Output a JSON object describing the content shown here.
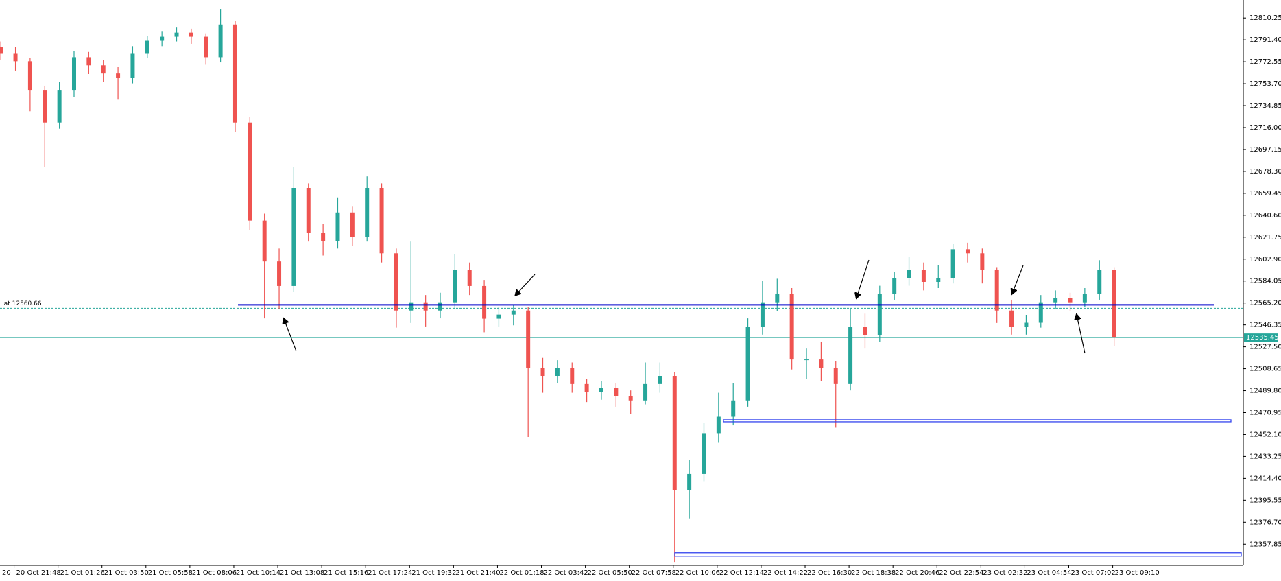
{
  "chart_data": {
    "type": "candlestick",
    "x_labels": [
      "20",
      "20 Oct 21:48",
      "21 Oct 01:26",
      "21 Oct 03:50",
      "21 Oct 05:58",
      "21 Oct 08:06",
      "21 Oct 10:14",
      "21 Oct 13:08",
      "21 Oct 15:16",
      "21 Oct 17:24",
      "21 Oct 19:32",
      "21 Oct 21:40",
      "22 Oct 01:18",
      "22 Oct 03:42",
      "22 Oct 05:50",
      "22 Oct 07:58",
      "22 Oct 10:06",
      "22 Oct 12:14",
      "22 Oct 14:22",
      "22 Oct 16:30",
      "22 Oct 18:38",
      "22 Oct 20:46",
      "22 Oct 22:54",
      "23 Oct 02:32",
      "23 Oct 04:54",
      "23 Oct 07:02",
      "23 Oct 09:10"
    ],
    "open": [
      12785,
      12780,
      12773,
      12748.4,
      12720.3,
      12748.4,
      12776.5,
      12769.5,
      12762.5,
      12759,
      12780,
      12790.6,
      12794.1,
      12797.6,
      12794.1,
      12776.5,
      12804.6,
      12720.3,
      12636,
      12600.9,
      12579.8,
      12664.1,
      12625.5,
      12618.4,
      12643,
      12622,
      12664.1,
      12607.9,
      12558.7,
      12565.8,
      12558.7,
      12565.8,
      12593.9,
      12579.8,
      12551.7,
      12555.2,
      12558.7,
      12509.5,
      12502.5,
      12509.5,
      12495.5,
      12488.5,
      12492,
      12484.9,
      12481.4,
      12495.5,
      12502.5,
      12404.2,
      12418.2,
      12453.3,
      12467.4,
      12481.4,
      12544.6,
      12565.8,
      12572.8,
      12516.6,
      12516.6,
      12509.5,
      12495.5,
      12544.6,
      12537.6,
      12572.8,
      12586.8,
      12593.9,
      12583.3,
      12586.8,
      12611.4,
      12607.9,
      12593.9,
      12558.7,
      12544.6,
      12548.2,
      12565.8,
      12569.3,
      12565.8,
      12572.8,
      12593.9
    ],
    "high": [
      12790,
      12785,
      12776,
      12752,
      12755,
      12782,
      12781,
      12774,
      12768,
      12786,
      12795,
      12799,
      12802,
      12801,
      12797,
      12818,
      12808,
      12725,
      12642,
      12612,
      12682,
      12668,
      12633,
      12656,
      12648,
      12674,
      12668,
      12612,
      12618,
      12572,
      12574,
      12607,
      12600,
      12585,
      12562,
      12564,
      12562,
      12518,
      12516,
      12514,
      12500,
      12498,
      12496,
      12490,
      12514,
      12514,
      12506,
      12430,
      12462,
      12488,
      12496,
      12552,
      12584,
      12586,
      12578,
      12526,
      12532,
      12515,
      12560,
      12556,
      12580,
      12592,
      12605,
      12600,
      12598,
      12616,
      12617,
      12612,
      12596,
      12568,
      12555,
      12572,
      12576,
      12574,
      12578,
      12602,
      12596
    ],
    "low": [
      12774,
      12765,
      12730,
      12682,
      12715,
      12742,
      12762,
      12755,
      12740,
      12754,
      12776,
      12786,
      12790,
      12788,
      12770,
      12772,
      12712,
      12628,
      12552,
      12560,
      12575,
      12618,
      12606,
      12612,
      12614,
      12618,
      12600,
      12544,
      12548,
      12545,
      12552,
      12560,
      12572,
      12540,
      12545,
      12546,
      12450,
      12488,
      12496,
      12488,
      12480,
      12482,
      12476,
      12470,
      12478,
      12488,
      12342,
      12380,
      12412,
      12445,
      12460,
      12476,
      12538,
      12558,
      12508,
      12500,
      12498,
      12458,
      12490,
      12526,
      12532,
      12568,
      12580,
      12576,
      12578,
      12582,
      12600,
      12582,
      12548,
      12538,
      12538,
      12544,
      12560,
      12558,
      12562,
      12568,
      12528
    ],
    "close": [
      12780,
      12773,
      12748.4,
      12720.3,
      12748.4,
      12776.5,
      12769.5,
      12762.5,
      12759,
      12780,
      12790.6,
      12794.1,
      12797.6,
      12794.1,
      12776.5,
      12804.6,
      12720.3,
      12636,
      12600.9,
      12579.8,
      12664.1,
      12625.5,
      12618.4,
      12643,
      12622,
      12664.1,
      12607.9,
      12558.7,
      12565.8,
      12558.7,
      12565.8,
      12593.9,
      12579.8,
      12551.7,
      12555.2,
      12558.7,
      12509.5,
      12502.5,
      12509.5,
      12495.5,
      12488.5,
      12492,
      12484.9,
      12481.4,
      12495.5,
      12502.5,
      12404.2,
      12418.2,
      12453.3,
      12467.4,
      12481.4,
      12544.6,
      12565.8,
      12572.8,
      12516.6,
      12516.6,
      12509.5,
      12495.5,
      12544.6,
      12537.6,
      12572.8,
      12586.8,
      12593.9,
      12583.3,
      12586.8,
      12611.4,
      12607.9,
      12593.9,
      12558.7,
      12544.6,
      12548.2,
      12565.8,
      12569.3,
      12565.8,
      12572.8,
      12593.9,
      12535.45
    ],
    "up_color": "#26a69a",
    "down_color": "#ef5350",
    "ylim": [
      12340.9,
      12825.7
    ],
    "yticks": [
      12357.85,
      {
        "value": 12376.7,
        "label": "12376.70"
      },
      12395.55,
      {
        "value": 12414.4,
        "label": "12414.40"
      },
      12433.25,
      {
        "value": 12452.1,
        "label": "12452.10"
      },
      12470.95,
      {
        "value": 12489.8,
        "label": "12489.80"
      },
      12508.65,
      {
        "value": 12527.5,
        "label": "12527.50"
      },
      12546.35,
      {
        "value": 12565.2,
        "label": "12565.20"
      },
      12584.05,
      {
        "value": 12602.9,
        "label": "12602.90"
      },
      12621.75,
      {
        "value": 12640.6,
        "label": "12640.60"
      },
      12659.45,
      {
        "value": 12678.3,
        "label": "12678.30"
      },
      12697.15,
      {
        "value": 12716,
        "label": "12716.00"
      },
      12734.85,
      {
        "value": 12753.7,
        "label": "12753.70"
      },
      12772.55,
      {
        "value": 12791.4,
        "label": "12791.40"
      },
      12810.25
    ],
    "levels": [
      {
        "value": 12563.6,
        "color": "#0000cc"
      },
      {
        "value": 12463.9,
        "color": "#3344ee"
      },
      {
        "value": 12349,
        "color": "#3344ee"
      }
    ],
    "reference_line": {
      "value": 12560.66,
      "label": ". at 12560.66",
      "color": "#26a69a"
    },
    "price_line_color": "#26a69a"
  }
}
